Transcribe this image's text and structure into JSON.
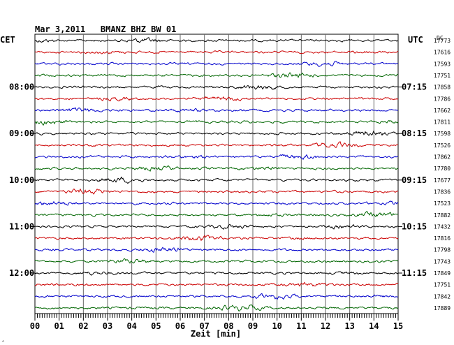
{
  "header": {
    "title": "Mar 3,2011   BMANZ BHZ BW 01",
    "left_label": "CET",
    "right_label": "UTC",
    "dc_label": "DC"
  },
  "corner_mark": "‸",
  "chart_data": {
    "type": "line",
    "title": "Mar 3,2011   BMANZ BHZ BW 01",
    "xlabel": "Zeit [min]",
    "xlim": [
      0,
      15
    ],
    "x_ticks": [
      "00",
      "01",
      "02",
      "03",
      "04",
      "05",
      "06",
      "07",
      "08",
      "09",
      "10",
      "11",
      "12",
      "13",
      "14",
      "15"
    ],
    "trace_colors": [
      "#000000",
      "#cc0000",
      "#0000cc",
      "#006600"
    ],
    "left_time_labels": [
      {
        "trace": 4,
        "label": "08:00"
      },
      {
        "trace": 8,
        "label": "09:00"
      },
      {
        "trace": 12,
        "label": "10:00"
      },
      {
        "trace": 16,
        "label": "11:00"
      },
      {
        "trace": 20,
        "label": "12:00"
      }
    ],
    "right_time_labels": [
      {
        "trace": 4,
        "label": "07:15"
      },
      {
        "trace": 8,
        "label": "08:15"
      },
      {
        "trace": 12,
        "label": "09:15"
      },
      {
        "trace": 16,
        "label": "10:15"
      },
      {
        "trace": 20,
        "label": "11:15"
      }
    ],
    "dc_offsets": [
      17773,
      17616,
      17593,
      17751,
      17858,
      17786,
      17662,
      17811,
      17598,
      17526,
      17862,
      17780,
      17677,
      17836,
      17523,
      17882,
      17432,
      17816,
      17798,
      17743,
      17849,
      17751,
      17842,
      17889
    ],
    "grid": true
  }
}
